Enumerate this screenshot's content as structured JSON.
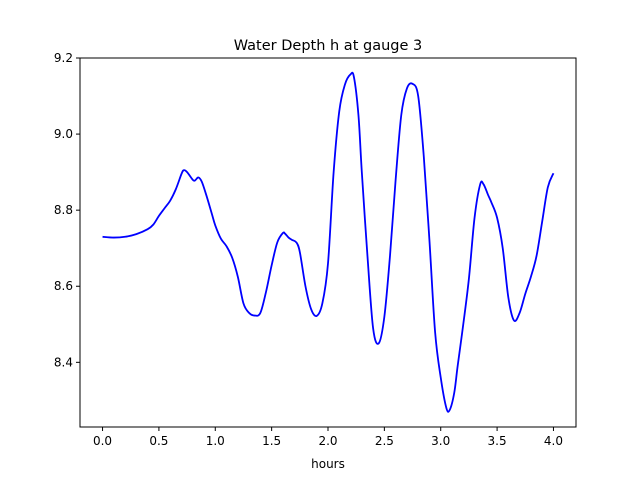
{
  "chart_data": {
    "type": "line",
    "title": "Water Depth h at gauge 3",
    "xlabel": "hours",
    "ylabel": "",
    "xlim": [
      -0.2,
      4.2
    ],
    "ylim": [
      8.23,
      9.2
    ],
    "x_ticks": [
      "0.0",
      "0.5",
      "1.0",
      "1.5",
      "2.0",
      "2.5",
      "3.0",
      "3.5",
      "4.0"
    ],
    "y_ticks": [
      "8.4",
      "8.6",
      "8.8",
      "9.0",
      "9.2"
    ],
    "grid": false,
    "colors": {
      "line": "#0000ff",
      "axes": "#000000",
      "background": "#ffffff"
    },
    "series": [
      {
        "x": [
          0.0,
          0.1,
          0.2,
          0.3,
          0.4,
          0.45,
          0.5,
          0.55,
          0.6,
          0.65,
          0.7,
          0.72,
          0.75,
          0.8,
          0.82,
          0.85,
          0.88,
          0.92,
          0.97,
          1.0,
          1.05,
          1.1,
          1.15,
          1.2,
          1.25,
          1.3,
          1.35,
          1.4,
          1.45,
          1.5,
          1.55,
          1.6,
          1.62,
          1.65,
          1.68,
          1.72,
          1.75,
          1.8,
          1.85,
          1.9,
          1.95,
          2.0,
          2.05,
          2.1,
          2.15,
          2.2,
          2.23,
          2.27,
          2.3,
          2.35,
          2.4,
          2.45,
          2.5,
          2.55,
          2.6,
          2.65,
          2.7,
          2.75,
          2.8,
          2.85,
          2.9,
          2.95,
          3.0,
          3.05,
          3.08,
          3.12,
          3.15,
          3.2,
          3.25,
          3.3,
          3.35,
          3.38,
          3.42,
          3.45,
          3.5,
          3.55,
          3.6,
          3.65,
          3.7,
          3.75,
          3.8,
          3.85,
          3.9,
          3.95,
          4.0
        ],
        "values": [
          8.73,
          8.728,
          8.73,
          8.737,
          8.75,
          8.762,
          8.785,
          8.805,
          8.825,
          8.855,
          8.895,
          8.905,
          8.9,
          8.88,
          8.878,
          8.886,
          8.875,
          8.84,
          8.79,
          8.76,
          8.725,
          8.705,
          8.675,
          8.625,
          8.555,
          8.53,
          8.523,
          8.53,
          8.585,
          8.655,
          8.715,
          8.74,
          8.738,
          8.728,
          8.722,
          8.715,
          8.69,
          8.6,
          8.54,
          8.522,
          8.555,
          8.66,
          8.9,
          9.06,
          9.13,
          9.157,
          9.15,
          9.05,
          8.9,
          8.68,
          8.49,
          8.45,
          8.52,
          8.68,
          8.88,
          9.05,
          9.12,
          9.132,
          9.1,
          8.94,
          8.72,
          8.48,
          8.36,
          8.28,
          8.275,
          8.32,
          8.39,
          8.5,
          8.62,
          8.78,
          8.868,
          8.868,
          8.84,
          8.82,
          8.78,
          8.7,
          8.57,
          8.51,
          8.53,
          8.58,
          8.625,
          8.68,
          8.77,
          8.86,
          8.897
        ]
      }
    ]
  }
}
